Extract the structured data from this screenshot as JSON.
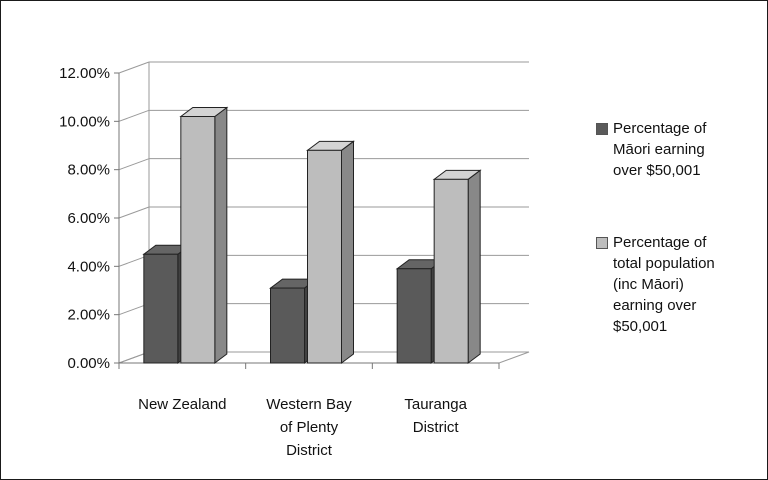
{
  "chart_data": {
    "type": "bar",
    "style": "3d-clustered-column",
    "categories": [
      [
        "New Zealand"
      ],
      [
        "Western Bay",
        "of Plenty",
        "District"
      ],
      [
        "Tauranga",
        "District"
      ]
    ],
    "series": [
      {
        "name": "Percentage of Māori earning over $50,001",
        "values": [
          4.5,
          3.1,
          3.9
        ],
        "color": "#5a5a5a"
      },
      {
        "name": "Percentage of total population (inc Māori) earning over $50,001",
        "values": [
          10.2,
          8.8,
          7.6
        ],
        "color": "#bdbdbd"
      }
    ],
    "yticks": [
      "0.00%",
      "2.00%",
      "4.00%",
      "6.00%",
      "8.00%",
      "10.00%",
      "12.00%"
    ],
    "ylim": [
      0,
      12
    ],
    "grid": true,
    "legend_position": "right"
  },
  "legend": {
    "items": [
      {
        "lines": [
          "Percentage of",
          "Māori earning",
          "over $50,001"
        ]
      },
      {
        "lines": [
          "Percentage of",
          "total population",
          "(inc Māori)",
          "earning over",
          "$50,001"
        ]
      }
    ]
  }
}
